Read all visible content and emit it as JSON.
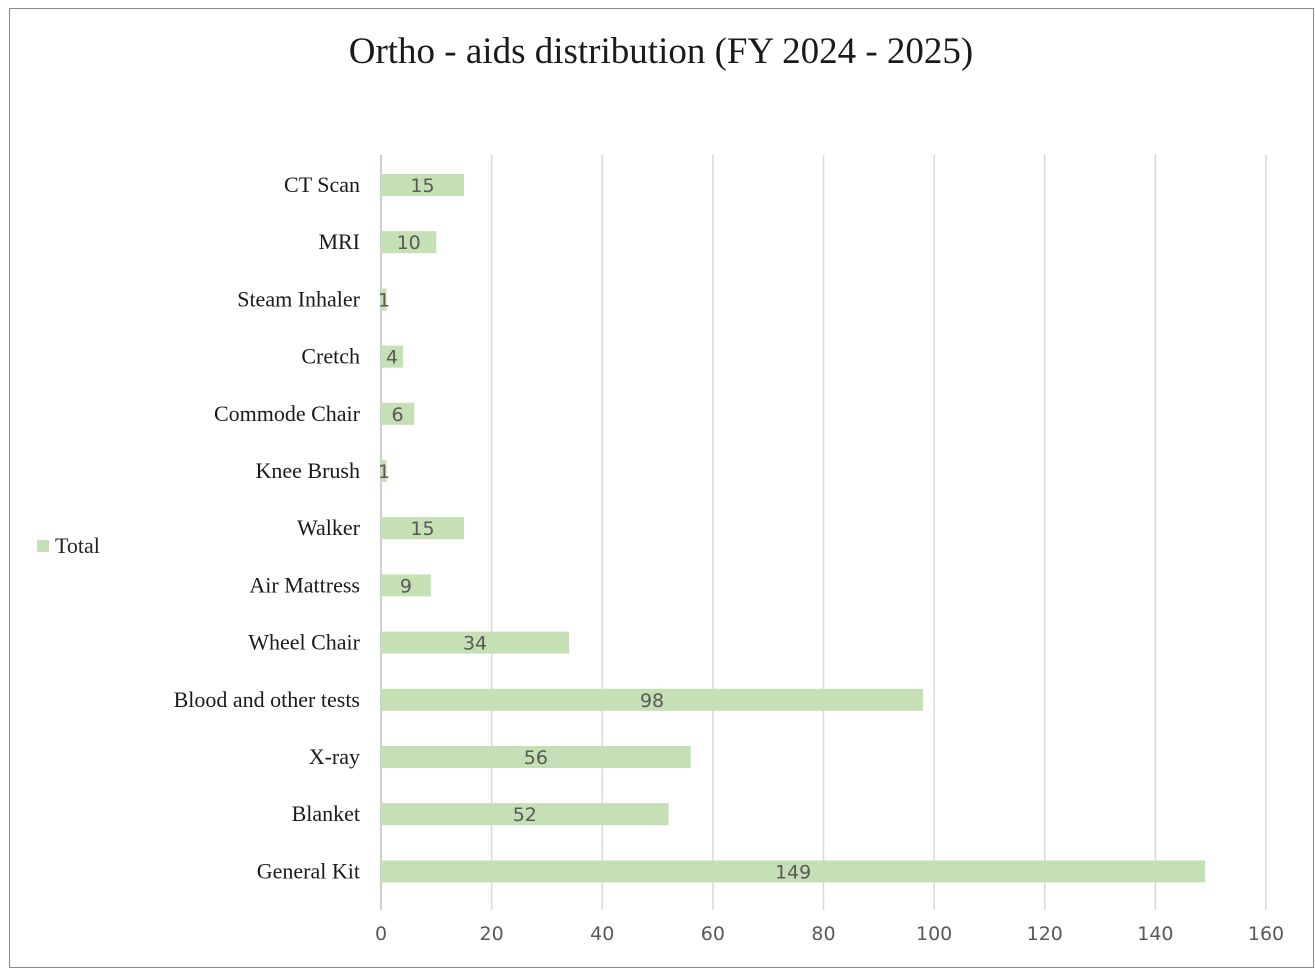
{
  "chart_data": {
    "type": "bar",
    "orientation": "horizontal",
    "title": "Ortho - aids distribution (FY 2024 - 2025)",
    "categories": [
      "CT Scan",
      "MRI",
      "Steam Inhaler",
      "Cretch",
      "Commode Chair",
      "Knee Brush",
      "Walker",
      "Air Mattress",
      "Wheel Chair",
      "Blood and other tests",
      "X-ray",
      "Blanket",
      "General Kit"
    ],
    "series": [
      {
        "name": "Total",
        "values": [
          15,
          10,
          1,
          4,
          6,
          1,
          15,
          9,
          34,
          98,
          56,
          52,
          149
        ],
        "color": "#c5e0b4"
      }
    ],
    "xlim": [
      0,
      160
    ],
    "xticks": [
      0,
      20,
      40,
      60,
      80,
      100,
      120,
      140,
      160
    ],
    "grid": true,
    "legend_position": "left",
    "data_labels": true
  }
}
